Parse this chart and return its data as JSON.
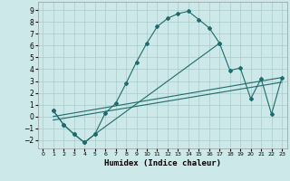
{
  "xlabel": "Humidex (Indice chaleur)",
  "xlim": [
    -0.5,
    23.5
  ],
  "ylim": [
    -2.7,
    9.7
  ],
  "xticks": [
    0,
    1,
    2,
    3,
    4,
    5,
    6,
    7,
    8,
    9,
    10,
    11,
    12,
    13,
    14,
    15,
    16,
    17,
    18,
    19,
    20,
    21,
    22,
    23
  ],
  "yticks": [
    -2,
    -1,
    0,
    1,
    2,
    3,
    4,
    5,
    6,
    7,
    8,
    9
  ],
  "background_color": "#cce8e8",
  "grid_color": "#aacccc",
  "line_color": "#1f6b6b",
  "curve1_x": [
    1,
    2,
    3,
    4,
    5,
    6,
    7,
    8,
    9,
    10,
    11,
    12,
    13,
    14,
    15,
    16,
    17
  ],
  "curve1_y": [
    0.5,
    -0.7,
    -1.5,
    -2.2,
    -1.5,
    0.3,
    1.1,
    2.8,
    4.6,
    6.2,
    7.6,
    8.3,
    8.7,
    8.9,
    8.2,
    7.5,
    6.2
  ],
  "curve2_x": [
    1,
    2,
    3,
    4,
    5,
    17,
    18,
    19,
    20,
    21,
    22,
    23
  ],
  "curve2_y": [
    0.5,
    -0.7,
    -1.5,
    -2.2,
    -1.5,
    6.2,
    3.9,
    4.1,
    1.5,
    3.2,
    0.2,
    3.3
  ],
  "line3_x": [
    1,
    23
  ],
  "line3_y": [
    0.0,
    3.3
  ],
  "line4_x": [
    1,
    23
  ],
  "line4_y": [
    -0.3,
    2.9
  ]
}
